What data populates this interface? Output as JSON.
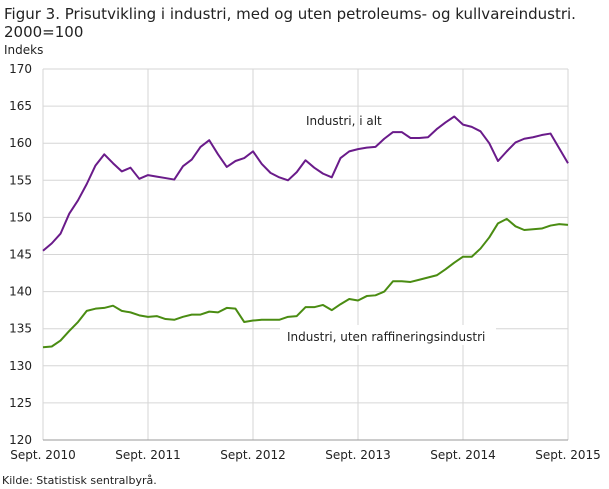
{
  "chart_data": {
    "type": "line",
    "title": "Figur 3. Prisutvikling i industri, med og uten petroleums- og kullvareindustri. 2000=100",
    "ylabel": "Indeks",
    "ylim": [
      120,
      170
    ],
    "yticks": [
      120,
      125,
      130,
      135,
      140,
      145,
      150,
      155,
      160,
      165,
      170
    ],
    "xticks": [
      "Sept. 2010",
      "Sept. 2011",
      "Sept. 2012",
      "Sept. 2013",
      "Sept. 2014",
      "Sept. 2015"
    ],
    "x_range": [
      "Sept. 2010",
      "Sept. 2015"
    ],
    "frequency": "monthly",
    "grid": true,
    "series": [
      {
        "name": "Industri, i alt",
        "color": "#6a1b8a",
        "values": [
          145.5,
          146.5,
          147.8,
          150.5,
          152.3,
          154.5,
          157,
          158.5,
          157.3,
          156.2,
          156.7,
          155.2,
          155.7,
          155.5,
          155.3,
          155.1,
          156.9,
          157.8,
          159.5,
          160.4,
          158.5,
          156.8,
          157.6,
          158.0,
          158.9,
          157.2,
          156.0,
          155.4,
          155.0,
          156.1,
          157.7,
          156.7,
          155.9,
          155.4,
          158.0,
          158.9,
          159.2,
          159.4,
          159.5,
          160.6,
          161.5,
          161.5,
          160.7,
          160.7,
          160.8,
          161.9,
          162.8,
          163.6,
          162.5,
          162.2,
          161.6,
          160.0,
          157.6,
          158.9,
          160.1,
          160.6,
          160.8,
          161.1,
          161.3,
          159.3,
          157.3
        ]
      },
      {
        "name": "Industri, uten raffineringsindustri",
        "color": "#4a8c12",
        "values": [
          132.5,
          132.6,
          133.4,
          134.7,
          135.9,
          137.4,
          137.7,
          137.8,
          138.1,
          137.4,
          137.2,
          136.8,
          136.6,
          136.7,
          136.3,
          136.2,
          136.6,
          136.9,
          136.9,
          137.3,
          137.2,
          137.8,
          137.7,
          135.9,
          136.1,
          136.2,
          136.2,
          136.2,
          136.6,
          136.7,
          137.9,
          137.9,
          138.2,
          137.5,
          138.3,
          139.0,
          138.8,
          139.4,
          139.5,
          140.0,
          141.4,
          141.4,
          141.3,
          141.6,
          141.9,
          142.2,
          143.0,
          143.9,
          144.7,
          144.7,
          145.8,
          147.3,
          149.2,
          149.8,
          148.8,
          148.3,
          148.4,
          148.5,
          148.9,
          149.1,
          149.0
        ]
      }
    ]
  },
  "source": "Kilde: Statistisk sentralbyrå."
}
